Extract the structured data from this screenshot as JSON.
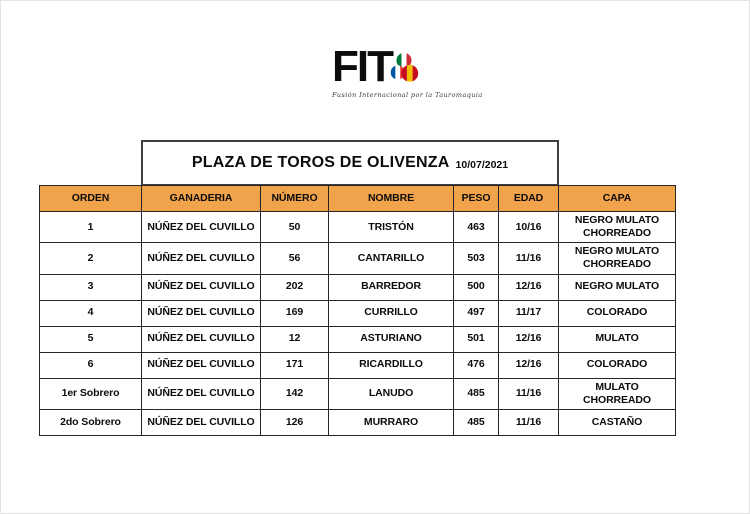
{
  "logo": {
    "text": "FIT",
    "tagline": "Fusión Internacional por la Tauromaquia",
    "circle_flags": [
      "italy",
      "france",
      "spain"
    ],
    "flag_colors": {
      "italy": [
        "#007A3D",
        "#FFFFFF",
        "#CE2B37"
      ],
      "france": [
        "#0055A4",
        "#FFFFFF",
        "#EF4135"
      ],
      "spain": [
        "#C60B1E",
        "#F1BF00",
        "#C60B1E"
      ]
    }
  },
  "title": {
    "text": "PLAZA DE TOROS DE OLIVENZA",
    "date": "10/07/2021"
  },
  "table": {
    "header_bg": "#F1A34B",
    "columns": [
      "ORDEN",
      "GANADERIA",
      "NÚMERO",
      "NOMBRE",
      "PESO",
      "EDAD",
      "CAPA"
    ],
    "rows": [
      {
        "orden": "1",
        "ganaderia": "NÚÑEZ DEL CUVILLO",
        "numero": "50",
        "nombre": "TRISTÓN",
        "peso": "463",
        "edad": "10/16",
        "capa": "NEGRO MULATO CHORREADO"
      },
      {
        "orden": "2",
        "ganaderia": "NÚÑEZ DEL CUVILLO",
        "numero": "56",
        "nombre": "CANTARILLO",
        "peso": "503",
        "edad": "11/16",
        "capa": "NEGRO MULATO CHORREADO"
      },
      {
        "orden": "3",
        "ganaderia": "NÚÑEZ DEL CUVILLO",
        "numero": "202",
        "nombre": "BARREDOR",
        "peso": "500",
        "edad": "12/16",
        "capa": "NEGRO MULATO"
      },
      {
        "orden": "4",
        "ganaderia": "NÚÑEZ DEL CUVILLO",
        "numero": "169",
        "nombre": "CURRILLO",
        "peso": "497",
        "edad": "11/17",
        "capa": "COLORADO"
      },
      {
        "orden": "5",
        "ganaderia": "NÚÑEZ DEL CUVILLO",
        "numero": "12",
        "nombre": "ASTURIANO",
        "peso": "501",
        "edad": "12/16",
        "capa": "MULATO"
      },
      {
        "orden": "6",
        "ganaderia": "NÚÑEZ DEL CUVILLO",
        "numero": "171",
        "nombre": "RICARDILLO",
        "peso": "476",
        "edad": "12/16",
        "capa": "COLORADO"
      },
      {
        "orden": "1er Sobrero",
        "ganaderia": "NÚÑEZ DEL CUVILLO",
        "numero": "142",
        "nombre": "LANUDO",
        "peso": "485",
        "edad": "11/16",
        "capa": "MULATO CHORREADO"
      },
      {
        "orden": "2do Sobrero",
        "ganaderia": "NÚÑEZ DEL CUVILLO",
        "numero": "126",
        "nombre": "MURRARO",
        "peso": "485",
        "edad": "11/16",
        "capa": "CASTAÑO"
      }
    ]
  }
}
